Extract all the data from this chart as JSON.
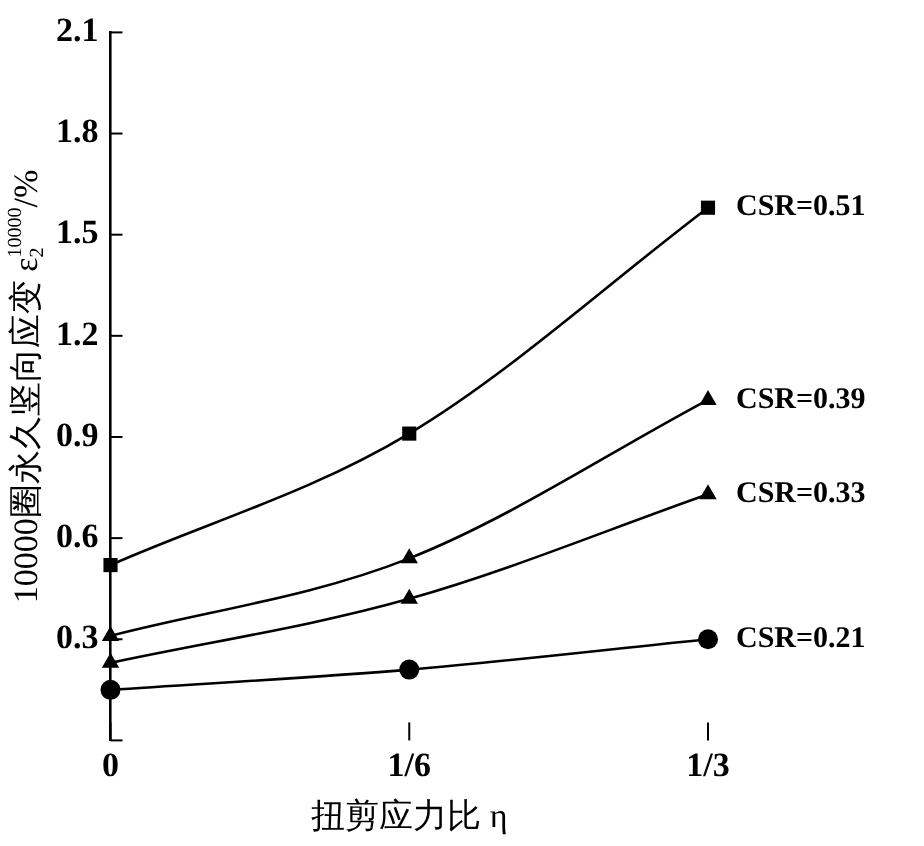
{
  "chart_data": {
    "type": "line",
    "xlabel": "扭剪应力比 η",
    "ylabel": "10000圈永久竖向应变 ε$_{2}$$^{10000}$/%",
    "xlim": [
      0,
      0.33333
    ],
    "xticks": [
      {
        "value": 0,
        "label": "0"
      },
      {
        "value": 0.16667,
        "label": "1/6"
      },
      {
        "value": 0.33333,
        "label": "1/3"
      }
    ],
    "ylim": [
      0,
      2.1
    ],
    "yticks": [
      {
        "value": 0,
        "label": null
      },
      0.3,
      0.6,
      0.9,
      1.2,
      1.5,
      1.8,
      2.1
    ],
    "x": [
      0,
      0.16667,
      0.33333
    ],
    "grid": false,
    "legend": false,
    "series": [
      {
        "name": "CSR=0.51",
        "color": "#000000",
        "marker": "square",
        "values": [
          0.52,
          0.91,
          1.58
        ]
      },
      {
        "name": "CSR=0.39",
        "color": "#000000",
        "marker": "triangle",
        "values": [
          0.31,
          0.54,
          1.01
        ]
      },
      {
        "name": "CSR=0.33",
        "color": "#000000",
        "marker": "triangle",
        "values": [
          0.23,
          0.42,
          0.73
        ]
      },
      {
        "name": "CSR=0.21",
        "color": "#000000",
        "marker": "circle",
        "values": [
          0.15,
          0.21,
          0.3
        ]
      }
    ]
  }
}
